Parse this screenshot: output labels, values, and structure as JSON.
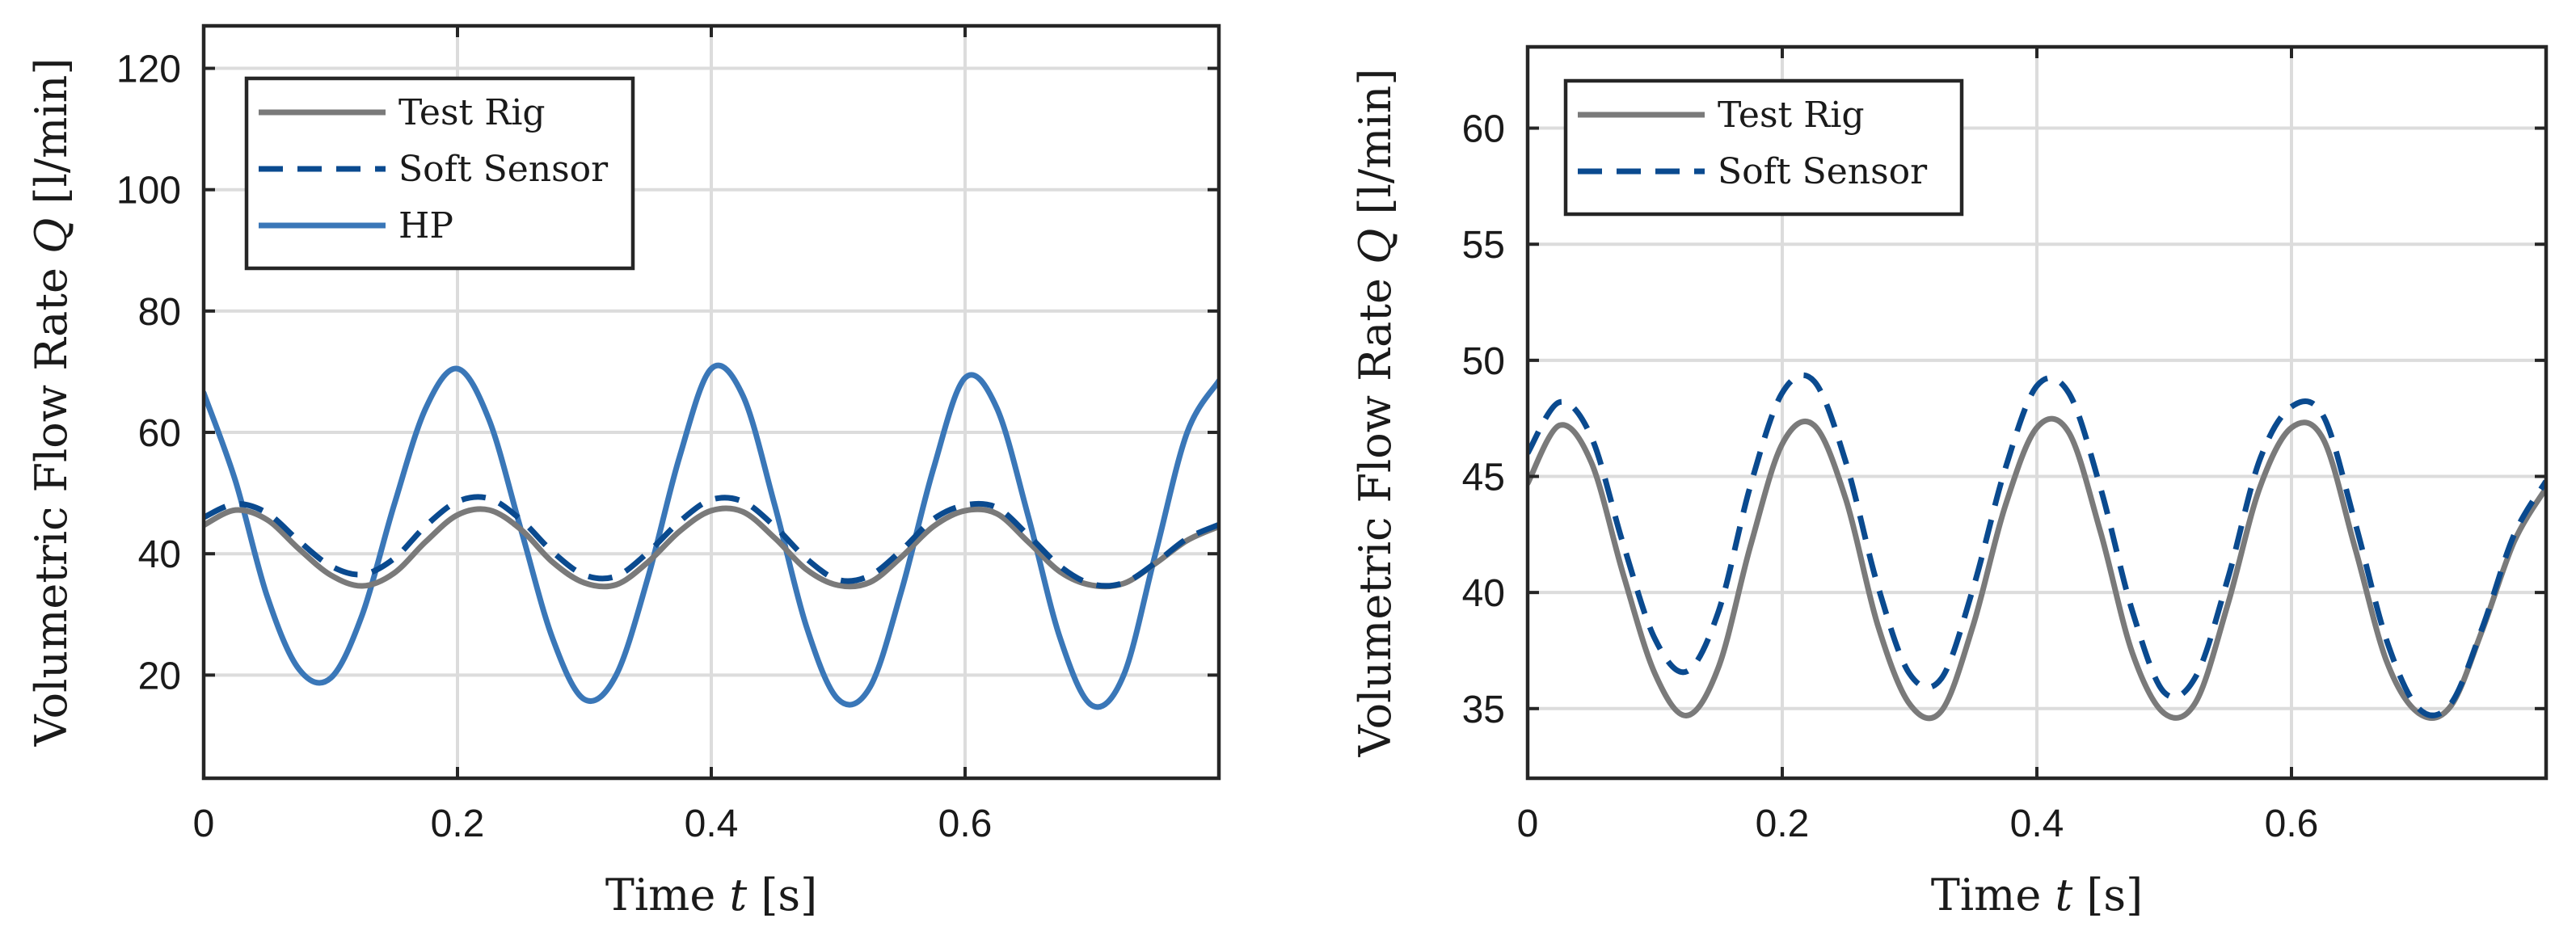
{
  "chart_data": [
    {
      "type": "line",
      "title": "",
      "xlabel": "Time",
      "xlabel_var": "t",
      "xlabel_unit": "[s]",
      "ylabel": "Volumetric Flow Rate",
      "ylabel_var": "Q",
      "ylabel_unit": "[l/min]",
      "xlim": [
        0,
        0.8
      ],
      "ylim": [
        3,
        127
      ],
      "xticks": [
        0,
        0.2,
        0.4,
        0.6
      ],
      "xtick_labels": [
        "0",
        "0.2",
        "0.4",
        "0.6"
      ],
      "yticks": [
        20,
        40,
        60,
        80,
        100,
        120
      ],
      "ytick_labels": [
        "20",
        "40",
        "60",
        "80",
        "100",
        "120"
      ],
      "grid": true,
      "legend_position": "top-left",
      "series": [
        {
          "name": "Test Rig",
          "color": "#7a7a7a",
          "style": "solid",
          "x": [
            0,
            0.025,
            0.05,
            0.075,
            0.1,
            0.125,
            0.15,
            0.175,
            0.2,
            0.225,
            0.25,
            0.275,
            0.3,
            0.325,
            0.35,
            0.375,
            0.4,
            0.425,
            0.45,
            0.475,
            0.5,
            0.525,
            0.55,
            0.575,
            0.6,
            0.625,
            0.65,
            0.675,
            0.7,
            0.725,
            0.75,
            0.775,
            0.8
          ],
          "y": [
            44.7,
            47.2,
            45.6,
            40.8,
            36.5,
            34.7,
            36.8,
            42.0,
            46.4,
            47.2,
            44.0,
            38.6,
            35.2,
            34.9,
            38.6,
            43.7,
            47.1,
            46.9,
            42.6,
            37.4,
            34.8,
            35.3,
            39.5,
            44.5,
            47.1,
            46.6,
            41.9,
            37.0,
            34.8,
            35.1,
            38.4,
            42.2,
            44.5
          ]
        },
        {
          "name": "Soft Sensor",
          "color": "#0a4a8f",
          "style": "dashed",
          "x": [
            0,
            0.025,
            0.05,
            0.075,
            0.1,
            0.125,
            0.15,
            0.175,
            0.2,
            0.225,
            0.25,
            0.275,
            0.3,
            0.325,
            0.35,
            0.375,
            0.4,
            0.425,
            0.45,
            0.475,
            0.5,
            0.525,
            0.55,
            0.575,
            0.6,
            0.625,
            0.65,
            0.675,
            0.7,
            0.725,
            0.75,
            0.775,
            0.8
          ],
          "y": [
            46.0,
            48.2,
            46.7,
            42.1,
            38.0,
            36.6,
            39.2,
            44.6,
            48.6,
            49.1,
            45.6,
            40.3,
            36.5,
            36.3,
            40.2,
            45.3,
            48.9,
            48.6,
            44.5,
            39.2,
            35.7,
            36.4,
            40.6,
            45.7,
            48.0,
            47.6,
            43.0,
            37.9,
            35.0,
            35.2,
            38.5,
            42.5,
            44.8
          ]
        },
        {
          "name": "HP",
          "color": "#3a77b8",
          "style": "solid",
          "x": [
            0,
            0.025,
            0.05,
            0.075,
            0.1,
            0.125,
            0.15,
            0.175,
            0.2,
            0.225,
            0.25,
            0.275,
            0.3,
            0.325,
            0.35,
            0.375,
            0.4,
            0.425,
            0.45,
            0.475,
            0.5,
            0.525,
            0.55,
            0.575,
            0.6,
            0.625,
            0.65,
            0.675,
            0.7,
            0.725,
            0.75,
            0.775,
            0.8
          ],
          "y": [
            66.5,
            52.0,
            33.0,
            21.0,
            19.5,
            30.0,
            48.0,
            64.0,
            70.5,
            62.0,
            44.0,
            26.0,
            16.0,
            20.0,
            36.0,
            56.0,
            70.5,
            66.0,
            48.0,
            28.0,
            16.0,
            18.0,
            34.0,
            54.0,
            69.0,
            64.0,
            46.0,
            26.0,
            15.0,
            20.0,
            40.0,
            60.0,
            68.5
          ]
        }
      ]
    },
    {
      "type": "line",
      "title": "",
      "xlabel": "Time",
      "xlabel_var": "t",
      "xlabel_unit": "[s]",
      "ylabel": "Volumetric Flow Rate",
      "ylabel_var": "Q",
      "ylabel_unit": "[l/min]",
      "xlim": [
        0,
        0.8
      ],
      "ylim": [
        32,
        63.5
      ],
      "xticks": [
        0,
        0.2,
        0.4,
        0.6
      ],
      "xtick_labels": [
        "0",
        "0.2",
        "0.4",
        "0.6"
      ],
      "yticks": [
        35,
        40,
        45,
        50,
        55,
        60
      ],
      "ytick_labels": [
        "35",
        "40",
        "45",
        "50",
        "55",
        "60"
      ],
      "grid": true,
      "legend_position": "top-left",
      "series": [
        {
          "name": "Test Rig",
          "color": "#7a7a7a",
          "style": "solid",
          "x": [
            0,
            0.025,
            0.05,
            0.075,
            0.1,
            0.125,
            0.15,
            0.175,
            0.2,
            0.225,
            0.25,
            0.275,
            0.3,
            0.325,
            0.35,
            0.375,
            0.4,
            0.425,
            0.45,
            0.475,
            0.5,
            0.525,
            0.55,
            0.575,
            0.6,
            0.625,
            0.65,
            0.675,
            0.7,
            0.725,
            0.75,
            0.775,
            0.8
          ],
          "y": [
            44.7,
            47.2,
            45.6,
            40.8,
            36.5,
            34.7,
            36.8,
            42.0,
            46.4,
            47.2,
            44.0,
            38.6,
            35.2,
            34.9,
            38.6,
            43.7,
            47.1,
            46.9,
            42.6,
            37.4,
            34.8,
            35.3,
            39.5,
            44.5,
            47.1,
            46.6,
            41.9,
            37.0,
            34.8,
            35.1,
            38.4,
            42.2,
            44.5
          ]
        },
        {
          "name": "Soft Sensor",
          "color": "#0a4a8f",
          "style": "dashed",
          "x": [
            0,
            0.025,
            0.05,
            0.075,
            0.1,
            0.125,
            0.15,
            0.175,
            0.2,
            0.225,
            0.25,
            0.275,
            0.3,
            0.325,
            0.35,
            0.375,
            0.4,
            0.425,
            0.45,
            0.475,
            0.5,
            0.525,
            0.55,
            0.575,
            0.6,
            0.625,
            0.65,
            0.675,
            0.7,
            0.725,
            0.75,
            0.775,
            0.8
          ],
          "y": [
            46.0,
            48.2,
            46.7,
            42.1,
            38.0,
            36.6,
            39.2,
            44.6,
            48.6,
            49.1,
            45.6,
            40.3,
            36.5,
            36.3,
            40.2,
            45.3,
            48.9,
            48.6,
            44.5,
            39.2,
            35.7,
            36.4,
            40.6,
            45.7,
            48.0,
            47.6,
            43.0,
            37.9,
            35.0,
            35.2,
            38.5,
            42.5,
            44.8
          ]
        }
      ]
    }
  ]
}
